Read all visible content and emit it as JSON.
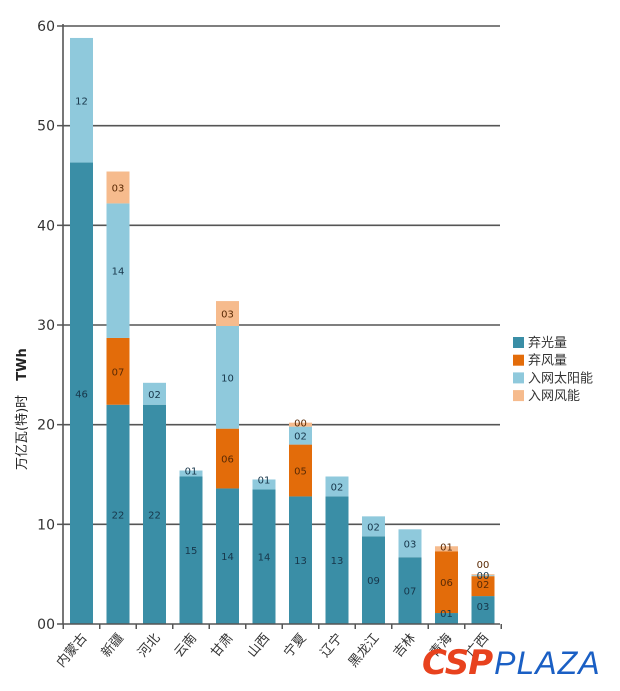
{
  "chart_data": {
    "type": "bar",
    "stacked": true,
    "title": "",
    "xlabel": "",
    "ylabel": "万亿瓦(特)时",
    "ylabel_unit": "TWh",
    "ylim": [
      0,
      60
    ],
    "yticks": [
      0,
      10,
      20,
      30,
      40,
      50,
      60
    ],
    "ytick_labels": [
      "00",
      "10",
      "20",
      "30",
      "40",
      "50",
      "60"
    ],
    "grid": true,
    "legend_position": "right",
    "categories": [
      "内蒙古",
      "新疆",
      "河北",
      "云南",
      "甘肃",
      "山西",
      "宁夏",
      "辽宁",
      "黑龙江",
      "吉林",
      "青海",
      "广西"
    ],
    "series": [
      {
        "name": "弃光量",
        "color": "#3a8ea6",
        "label_color": "#17364a",
        "values": [
          46.3,
          22.0,
          22.0,
          14.8,
          13.6,
          13.5,
          12.8,
          12.8,
          8.8,
          6.7,
          1.1,
          2.8
        ],
        "labels": [
          "46",
          "22",
          "22",
          "15",
          "14",
          "14",
          "13",
          "13",
          "09",
          "07",
          "01",
          "03"
        ]
      },
      {
        "name": "弃风量",
        "color": "#e36c0a",
        "label_color": "#5a2a05",
        "values": [
          0,
          6.7,
          0,
          0,
          6.0,
          0,
          5.2,
          0,
          0,
          0,
          6.2,
          2.0
        ],
        "labels": [
          "",
          "07",
          "",
          "",
          "06",
          "",
          "05",
          "",
          "",
          "",
          "06",
          "02"
        ]
      },
      {
        "name": "入网太阳能",
        "color": "#8fc9dc",
        "label_color": "#17364a",
        "values": [
          12.5,
          13.5,
          2.2,
          0.6,
          10.3,
          1.0,
          1.8,
          2.0,
          2.0,
          2.8,
          0,
          0.1
        ],
        "labels": [
          "12",
          "14",
          "02",
          "01",
          "10",
          "01",
          "02",
          "02",
          "02",
          "03",
          "",
          "00"
        ]
      },
      {
        "name": "入网风能",
        "color": "#f6bb8d",
        "label_color": "#5a2a05",
        "values": [
          0,
          3.2,
          0,
          0,
          2.5,
          0,
          0.4,
          0,
          0,
          0,
          0.5,
          0.1
        ],
        "labels": [
          "",
          "03",
          "",
          "",
          "03",
          "",
          "00",
          "",
          "",
          "",
          "01",
          "00"
        ]
      }
    ]
  },
  "watermark": {
    "brand_left": "CSP",
    "brand_right": "PLAZA"
  }
}
